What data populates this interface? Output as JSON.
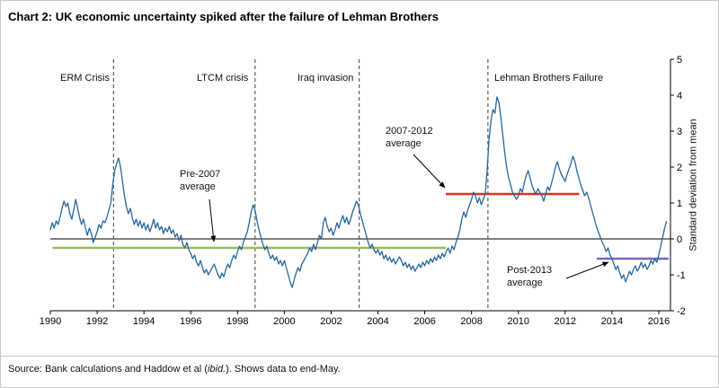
{
  "chart_data": {
    "type": "line",
    "title": "Chart 2: UK economic uncertainty spiked after the failure of Lehman Brothers",
    "xlabel": "",
    "ylabel": "Standard deviation from mean",
    "xlim": [
      1990,
      2016.5
    ],
    "ylim": [
      -2,
      5
    ],
    "grid": false,
    "legend": "none",
    "xticks": [
      1990,
      1992,
      1994,
      1996,
      1998,
      2000,
      2002,
      2004,
      2006,
      2008,
      2010,
      2012,
      2014,
      2016
    ],
    "yticks": [
      5,
      4,
      3,
      2,
      1,
      0,
      -1,
      -2
    ],
    "events": [
      {
        "label": "ERM Crisis",
        "year": 1992.7
      },
      {
        "label": "LTCM crisis",
        "year": 1998.75
      },
      {
        "label": "Iraq invasion",
        "year": 2003.2
      },
      {
        "label": "Lehman Brothers Failure",
        "year": 2008.7
      }
    ],
    "averages": [
      {
        "label": "Pre-2007 average",
        "value": -0.25,
        "from": 1990.1,
        "to": 2006.9,
        "color": "#9bbb59"
      },
      {
        "label": "2007-2012 average",
        "value": 1.25,
        "from": 2006.9,
        "to": 2012.6,
        "color": "#e0301e"
      },
      {
        "label": "Post-2013 average",
        "value": -0.55,
        "from": 2013.35,
        "to": 2016.42,
        "color": "#7d62c8"
      }
    ],
    "series": [
      {
        "name": "uk-economic-uncertainty",
        "color": "#26679e",
        "x_start": 1990,
        "x_step_months": 1,
        "x_end": 2016.42,
        "values": [
          0.25,
          0.45,
          0.3,
          0.5,
          0.4,
          0.6,
          0.85,
          1.05,
          0.9,
          1.0,
          0.7,
          0.55,
          0.8,
          1.1,
          0.85,
          0.6,
          0.4,
          0.55,
          0.3,
          0.1,
          0.3,
          0.15,
          -0.1,
          0.05,
          0.2,
          0.4,
          0.3,
          0.5,
          0.45,
          0.6,
          0.8,
          1.0,
          1.5,
          1.9,
          2.1,
          2.25,
          2.0,
          1.6,
          1.2,
          0.9,
          0.7,
          0.85,
          0.6,
          0.4,
          0.55,
          0.35,
          0.5,
          0.3,
          0.45,
          0.25,
          0.4,
          0.2,
          0.35,
          0.55,
          0.3,
          0.45,
          0.25,
          0.35,
          0.15,
          0.3,
          0.2,
          0.35,
          0.15,
          0.25,
          0.05,
          0.15,
          -0.05,
          0.1,
          -0.15,
          -0.25,
          -0.1,
          -0.3,
          -0.4,
          -0.55,
          -0.45,
          -0.65,
          -0.75,
          -0.6,
          -0.8,
          -0.95,
          -0.85,
          -1.0,
          -0.9,
          -0.8,
          -0.7,
          -0.85,
          -1.0,
          -1.1,
          -0.95,
          -1.05,
          -0.85,
          -0.7,
          -0.8,
          -0.6,
          -0.45,
          -0.55,
          -0.35,
          -0.2,
          -0.3,
          -0.1,
          0.05,
          0.2,
          0.45,
          0.75,
          0.95,
          0.8,
          0.5,
          0.25,
          0.05,
          -0.15,
          -0.3,
          -0.2,
          -0.4,
          -0.55,
          -0.45,
          -0.6,
          -0.5,
          -0.7,
          -0.6,
          -0.75,
          -0.6,
          -0.8,
          -1.0,
          -1.2,
          -1.35,
          -1.15,
          -0.95,
          -0.8,
          -0.9,
          -0.7,
          -0.6,
          -0.5,
          -0.4,
          -0.25,
          -0.35,
          -0.15,
          -0.3,
          -0.1,
          0.1,
          0.0,
          0.45,
          0.6,
          0.35,
          0.2,
          0.3,
          0.1,
          0.25,
          0.45,
          0.3,
          0.5,
          0.65,
          0.45,
          0.6,
          0.4,
          0.55,
          0.75,
          0.9,
          1.05,
          0.95,
          0.7,
          0.5,
          0.3,
          0.1,
          -0.1,
          -0.25,
          -0.15,
          -0.3,
          -0.4,
          -0.3,
          -0.45,
          -0.35,
          -0.55,
          -0.45,
          -0.6,
          -0.5,
          -0.65,
          -0.55,
          -0.7,
          -0.6,
          -0.5,
          -0.6,
          -0.75,
          -0.65,
          -0.8,
          -0.7,
          -0.85,
          -0.75,
          -0.9,
          -0.8,
          -0.7,
          -0.8,
          -0.65,
          -0.75,
          -0.6,
          -0.7,
          -0.55,
          -0.65,
          -0.5,
          -0.6,
          -0.45,
          -0.55,
          -0.4,
          -0.5,
          -0.35,
          -0.25,
          -0.4,
          -0.2,
          -0.3,
          -0.1,
          0.05,
          0.25,
          0.55,
          0.75,
          0.6,
          0.8,
          0.95,
          1.1,
          1.3,
          1.2,
          1.0,
          1.15,
          0.95,
          1.1,
          1.25,
          1.9,
          2.8,
          3.3,
          3.6,
          3.5,
          3.95,
          3.8,
          3.4,
          2.9,
          2.4,
          2.0,
          1.7,
          1.5,
          1.3,
          1.2,
          1.1,
          1.2,
          1.4,
          1.3,
          1.55,
          1.75,
          1.9,
          1.7,
          1.5,
          1.35,
          1.25,
          1.4,
          1.3,
          1.2,
          1.05,
          1.25,
          1.45,
          1.35,
          1.55,
          1.75,
          2.0,
          2.15,
          1.95,
          1.8,
          1.7,
          1.6,
          1.8,
          1.95,
          2.1,
          2.3,
          2.15,
          1.9,
          1.7,
          1.5,
          1.35,
          1.2,
          1.3,
          1.15,
          0.95,
          0.75,
          0.55,
          0.35,
          0.2,
          0.05,
          -0.1,
          -0.2,
          -0.35,
          -0.25,
          -0.45,
          -0.55,
          -0.7,
          -0.85,
          -0.75,
          -0.95,
          -1.1,
          -1.0,
          -1.2,
          -1.05,
          -0.9,
          -1.0,
          -0.85,
          -0.75,
          -0.9,
          -0.8,
          -0.65,
          -0.8,
          -0.7,
          -0.85,
          -0.75,
          -0.6,
          -0.7,
          -0.55,
          -0.65,
          -0.45,
          -0.2,
          0.05,
          0.3,
          0.5
        ]
      }
    ]
  },
  "source": {
    "prefix": "Source: Bank calculations and Haddow et al (",
    "ibid": "ibid.",
    "suffix": "). Shows data to end-May."
  }
}
